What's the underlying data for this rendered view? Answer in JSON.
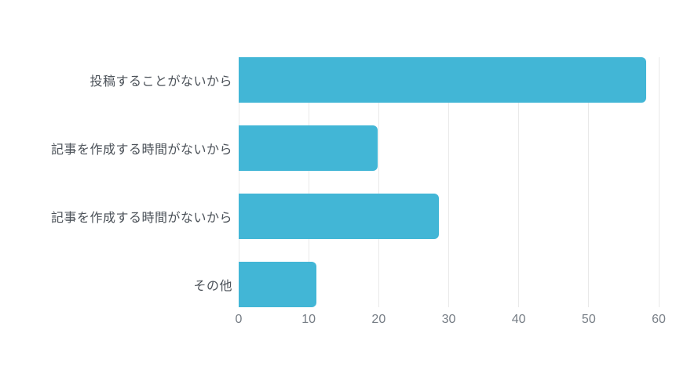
{
  "chart_data": {
    "type": "bar",
    "orientation": "horizontal",
    "title": "",
    "xlabel": "",
    "ylabel": "",
    "categories": [
      "投稿することがないから",
      "記事を作成する時間がないから",
      "記事を作成する時間がないから",
      "その他"
    ],
    "values": [
      58.2,
      19.8,
      28.6,
      11.1
    ],
    "xlim": [
      0,
      60
    ],
    "xticks": [
      0,
      10,
      20,
      30,
      40,
      50,
      60
    ],
    "grid": "vertical-only",
    "legend_position": "none",
    "colors": {
      "bar": "#42b6d6",
      "gridline": "#e9e9e9",
      "category_label": "#4b5158",
      "tick_label": "#767d85",
      "background": "#ffffff"
    }
  }
}
